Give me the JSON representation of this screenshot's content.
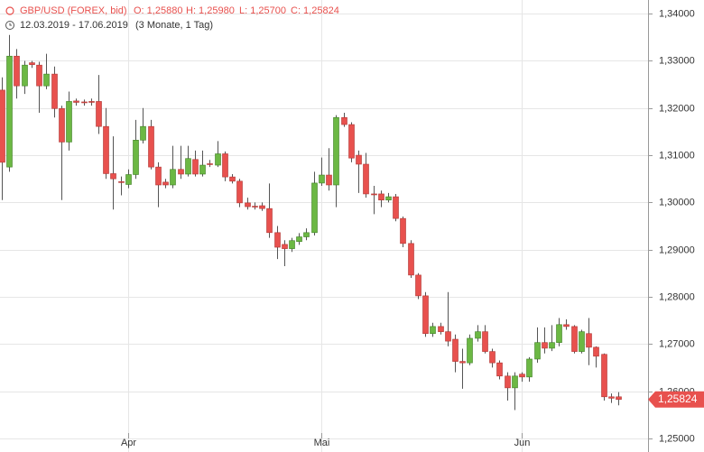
{
  "header": {
    "title": "GBP/USD (FOREX, bid)",
    "ohlc": [
      "O: 1,25880",
      "H: 1,25980",
      "L: 1,25700",
      "C: 1,25824"
    ],
    "range": "12.03.2019 - 17.06.2019",
    "period": "(3 Monate, 1 Tag)"
  },
  "chart_data": {
    "type": "candlestick",
    "categories": [
      null,
      null,
      null,
      null,
      null,
      null,
      null,
      null,
      null,
      null,
      null,
      null,
      null,
      null,
      null,
      null,
      null,
      "Apr",
      null,
      null,
      null,
      null,
      null,
      null,
      null,
      null,
      null,
      null,
      null,
      null,
      null,
      null,
      null,
      null,
      null,
      null,
      null,
      null,
      null,
      null,
      null,
      null,
      null,
      "Mai",
      null,
      null,
      null,
      null,
      null,
      null,
      null,
      null,
      null,
      null,
      null,
      null,
      null,
      null,
      null,
      null,
      null,
      null,
      null,
      null,
      null,
      null,
      null,
      null,
      null,
      null,
      "Jun",
      null,
      null,
      null,
      null,
      null,
      null,
      null,
      null,
      null,
      null,
      null,
      null,
      null
    ],
    "open": [
      1.3238,
      1.3075,
      1.331,
      1.3247,
      1.3296,
      1.3291,
      1.3247,
      1.3272,
      1.3199,
      1.3128,
      1.3215,
      1.3213,
      1.3214,
      1.3214,
      1.3161,
      1.3061,
      1.3044,
      1.3038,
      1.3059,
      1.3132,
      1.3161,
      1.3075,
      1.3043,
      1.3037,
      1.307,
      1.306,
      1.3091,
      1.306,
      1.3082,
      1.3079,
      1.3103,
      1.3054,
      1.3045,
      1.2999,
      1.2992,
      1.2993,
      1.2987,
      1.2936,
      1.2911,
      1.2902,
      1.2917,
      1.2927,
      1.2936,
      1.3041,
      1.3058,
      1.3037,
      1.318,
      1.3165,
      1.31,
      1.3081,
      1.3018,
      1.3018,
      1.3005,
      1.3012,
      1.2966,
      1.2913,
      1.2846,
      1.2802,
      1.2722,
      1.2737,
      1.2726,
      1.271,
      1.2663,
      1.266,
      1.2712,
      1.2726,
      1.2684,
      1.266,
      1.2632,
      1.2607,
      1.2636,
      1.263,
      1.2668,
      1.2703,
      1.2691,
      1.2703,
      1.2741,
      1.2737,
      1.2684,
      1.2722,
      1.2693,
      1.2678,
      1.2588,
      1.2588
    ],
    "high": [
      1.3265,
      1.3355,
      1.3325,
      1.33,
      1.33,
      1.3298,
      1.3315,
      1.3288,
      1.3205,
      1.3235,
      1.322,
      1.3218,
      1.322,
      1.327,
      1.32,
      1.314,
      1.3055,
      1.307,
      1.3175,
      1.32,
      1.3175,
      1.3085,
      1.305,
      1.312,
      1.312,
      1.312,
      1.311,
      1.311,
      1.309,
      1.313,
      1.3108,
      1.306,
      1.305,
      1.301,
      1.3,
      1.3,
      1.304,
      1.295,
      1.292,
      1.2925,
      1.2935,
      1.2945,
      1.3065,
      1.3095,
      1.3115,
      1.3185,
      1.319,
      1.317,
      1.311,
      1.3105,
      1.3035,
      1.3025,
      1.302,
      1.3018,
      1.297,
      1.292,
      1.285,
      1.281,
      1.2745,
      1.2745,
      1.281,
      1.272,
      1.269,
      1.272,
      1.274,
      1.274,
      1.269,
      1.2665,
      1.264,
      1.264,
      1.264,
      1.2672,
      1.2735,
      1.2735,
      1.274,
      1.2755,
      1.2752,
      1.274,
      1.273,
      1.2755,
      1.2695,
      1.268,
      1.2595,
      1.2598
    ],
    "low": [
      1.3005,
      1.3065,
      1.322,
      1.323,
      1.3285,
      1.319,
      1.324,
      1.318,
      1.3005,
      1.311,
      1.3205,
      1.3205,
      1.3205,
      1.3145,
      1.305,
      1.2985,
      1.3015,
      1.303,
      1.305,
      1.3125,
      1.307,
      1.299,
      1.303,
      1.303,
      1.305,
      1.3055,
      1.3055,
      1.3055,
      1.3075,
      1.3075,
      1.3045,
      1.304,
      1.299,
      1.2985,
      1.2985,
      1.2982,
      1.2925,
      1.288,
      1.2865,
      1.2895,
      1.291,
      1.292,
      1.293,
      1.3035,
      1.3025,
      1.299,
      1.316,
      1.3085,
      1.302,
      1.301,
      1.2975,
      1.299,
      1.3,
      1.296,
      1.2905,
      1.284,
      1.2795,
      1.2715,
      1.2715,
      1.272,
      1.2695,
      1.264,
      1.2605,
      1.2655,
      1.2705,
      1.268,
      1.265,
      1.2625,
      1.258,
      1.256,
      1.262,
      1.262,
      1.266,
      1.268,
      1.2685,
      1.2695,
      1.273,
      1.268,
      1.268,
      1.2655,
      1.265,
      1.258,
      1.2575,
      1.257
    ],
    "close": [
      1.3085,
      1.331,
      1.3247,
      1.3291,
      1.3292,
      1.3247,
      1.3272,
      1.3199,
      1.3128,
      1.3214,
      1.3212,
      1.3212,
      1.3212,
      1.3161,
      1.3061,
      1.305,
      1.3043,
      1.3059,
      1.3132,
      1.3161,
      1.3075,
      1.3037,
      1.3037,
      1.307,
      1.306,
      1.3093,
      1.306,
      1.3079,
      1.3081,
      1.3103,
      1.3054,
      1.3045,
      1.2999,
      1.2991,
      1.2991,
      1.2987,
      1.2936,
      1.2905,
      1.2902,
      1.2919,
      1.2927,
      1.2936,
      1.3041,
      1.3058,
      1.3037,
      1.318,
      1.3165,
      1.3094,
      1.3081,
      1.3018,
      1.3016,
      1.3005,
      1.3012,
      1.2966,
      1.2913,
      1.2846,
      1.2802,
      1.2722,
      1.2737,
      1.2726,
      1.2706,
      1.2663,
      1.266,
      1.2712,
      1.2726,
      1.2684,
      1.266,
      1.2632,
      1.2607,
      1.2632,
      1.263,
      1.2668,
      1.2703,
      1.2691,
      1.2703,
      1.2741,
      1.2737,
      1.2684,
      1.2726,
      1.2693,
      1.2674,
      1.2588,
      1.2585,
      1.25824
    ],
    "up_color": "#6cb844",
    "down_color": "#e8514e",
    "wick_color": "#555555",
    "ylim": [
      1.2471,
      1.3429
    ],
    "yticks": [
      {
        "value": 1.25,
        "label": "1,25000"
      },
      {
        "value": 1.26,
        "label": "1,26000"
      },
      {
        "value": 1.27,
        "label": "1,27000"
      },
      {
        "value": 1.28,
        "label": "1,28000"
      },
      {
        "value": 1.29,
        "label": "1,29000"
      },
      {
        "value": 1.3,
        "label": "1,30000"
      },
      {
        "value": 1.31,
        "label": "1,31000"
      },
      {
        "value": 1.32,
        "label": "1,32000"
      },
      {
        "value": 1.33,
        "label": "1,33000"
      },
      {
        "value": 1.34,
        "label": "1,34000"
      }
    ],
    "last": {
      "value": 1.25824,
      "label": "1,25824"
    },
    "grid": true
  }
}
